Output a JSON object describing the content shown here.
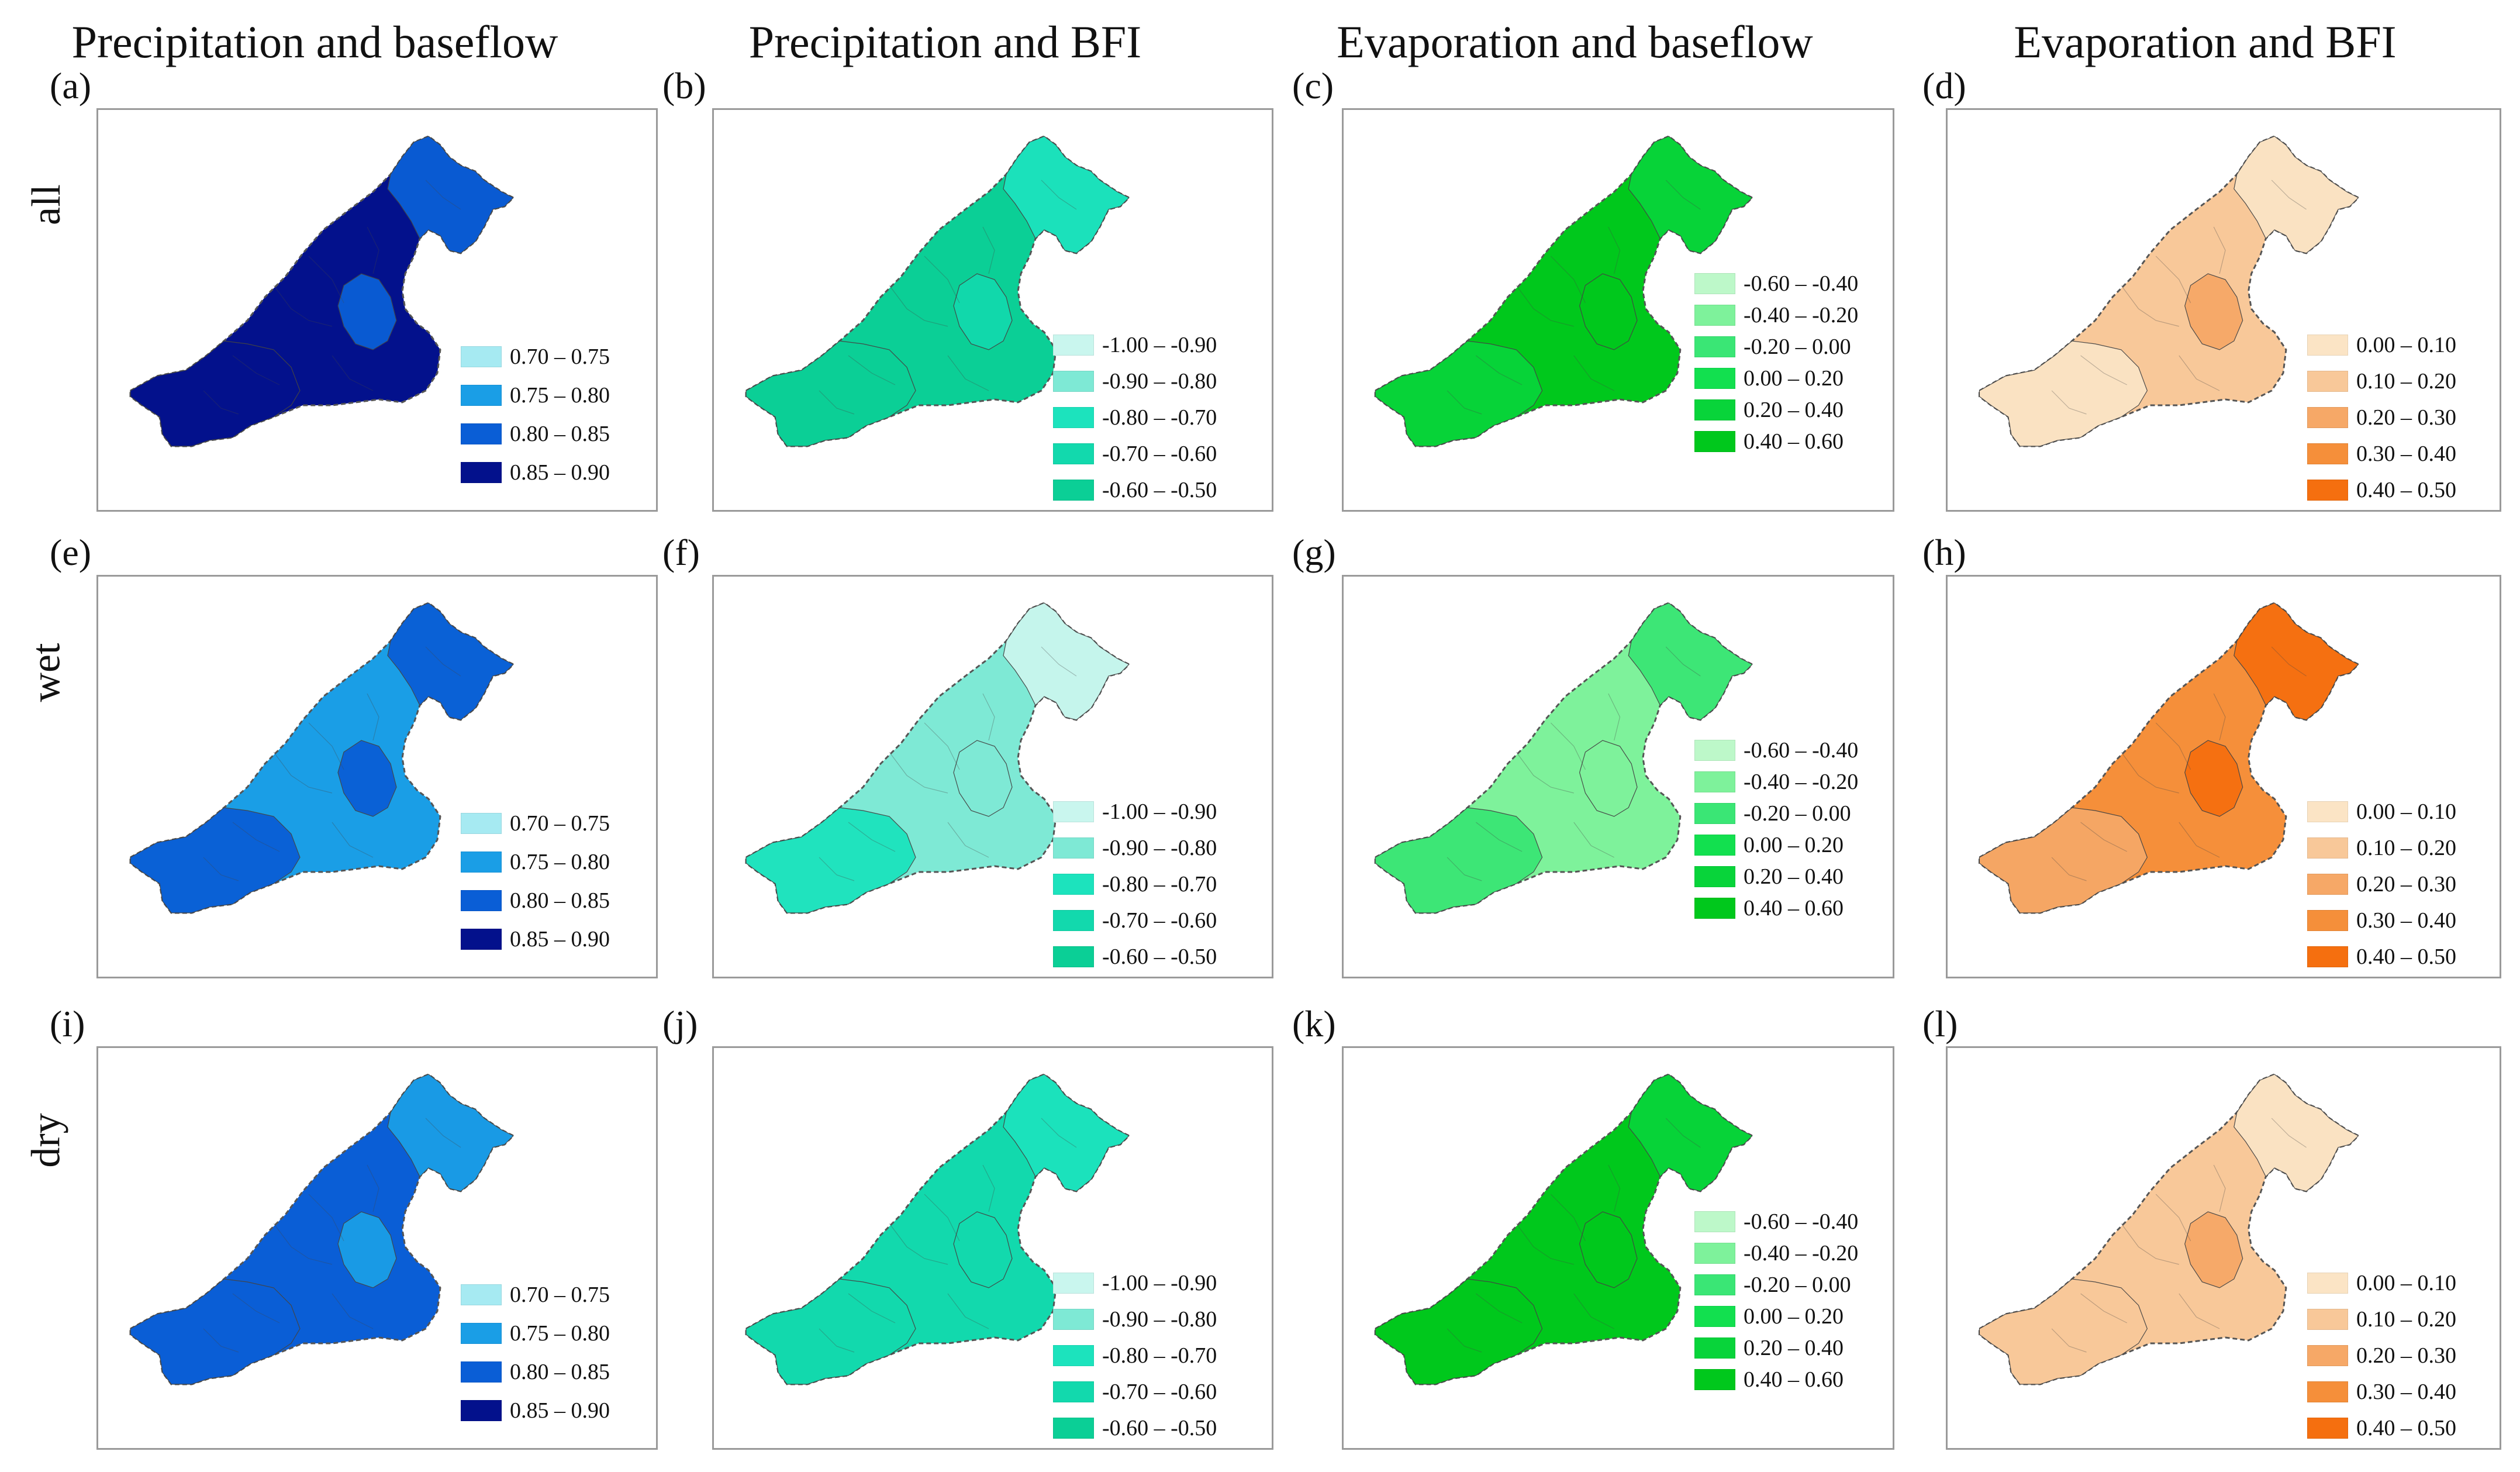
{
  "column_titles": [
    "Precipitation and baseflow",
    "Precipitation and BFI",
    "Evaporation and baseflow",
    "Evaporation and BFI"
  ],
  "row_labels": [
    "all",
    "wet",
    "dry"
  ],
  "panel_letters": [
    [
      "(a)",
      "(b)",
      "(c)",
      "(d)"
    ],
    [
      "(e)",
      "(f)",
      "(g)",
      "(h)"
    ],
    [
      "(i)",
      "(j)",
      "(k)",
      "(l)"
    ]
  ],
  "legends": [
    [
      {
        "label": "0.70 – 0.75",
        "color": "#a6eaf2"
      },
      {
        "label": "0.75 – 0.80",
        "color": "#1a9ee6"
      },
      {
        "label": "0.80 – 0.85",
        "color": "#0a5ed6"
      },
      {
        "label": "0.85 – 0.90",
        "color": "#03118c"
      }
    ],
    [
      {
        "label": "-1.00 – -0.90",
        "color": "#c9f6ee"
      },
      {
        "label": "-0.90 – -0.80",
        "color": "#7ee9d5"
      },
      {
        "label": "-0.80 – -0.70",
        "color": "#1ce3bd"
      },
      {
        "label": "-0.70 – -0.60",
        "color": "#12d9ad"
      },
      {
        "label": "-0.60 – -0.50",
        "color": "#0bcf96"
      }
    ],
    [
      {
        "label": "-0.60 – -0.40",
        "color": "#bdf8c9"
      },
      {
        "label": "-0.40 – -0.20",
        "color": "#7ef29b"
      },
      {
        "label": "-0.20 – 0.00",
        "color": "#3ae675"
      },
      {
        "label": "0.00 – 0.20",
        "color": "#12e04f"
      },
      {
        "label": "0.20 – 0.40",
        "color": "#08d43a"
      },
      {
        "label": "0.40 – 0.60",
        "color": "#00c81c"
      }
    ],
    [
      {
        "label": "0.00 – 0.10",
        "color": "#fbe4c5"
      },
      {
        "label": "0.10 – 0.20",
        "color": "#f8c899"
      },
      {
        "label": "0.20 – 0.30",
        "color": "#f6a867"
      },
      {
        "label": "0.30 – 0.40",
        "color": "#f58f3a"
      },
      {
        "label": "0.40 – 0.50",
        "color": "#f56f0f"
      }
    ]
  ],
  "panels": [
    [
      {
        "base": "#03118c",
        "ne": "#0a5ed6",
        "center": "#0a5ed6",
        "south": "#03118c"
      },
      {
        "base": "#0bcf96",
        "ne": "#1ce3bd",
        "center": "#12d9ad",
        "south": "#0bcf96"
      },
      {
        "base": "#00c81c",
        "ne": "#08d43a",
        "center": "#00c81c",
        "south": "#08d43a"
      },
      {
        "base": "#f8c899",
        "ne": "#fbe4c5",
        "center": "#f6a867",
        "south": "#fbe4c5"
      }
    ],
    [
      {
        "base": "#1a9ee6",
        "ne": "#0a5ed6",
        "center": "#0a5ed6",
        "south": "#0a5ed6"
      },
      {
        "base": "#7ee9d5",
        "ne": "#c9f6ee",
        "center": "#7ee9d5",
        "south": "#1ce3bd"
      },
      {
        "base": "#7ef29b",
        "ne": "#3ae675",
        "center": "#7ef29b",
        "south": "#3ae675"
      },
      {
        "base": "#f58f3a",
        "ne": "#f56f0f",
        "center": "#f56f0f",
        "south": "#f6a867"
      }
    ],
    [
      {
        "base": "#0a5ed6",
        "ne": "#1a9ee6",
        "center": "#1a9ee6",
        "south": "#0a5ed6"
      },
      {
        "base": "#12d9ad",
        "ne": "#1ce3bd",
        "center": "#12d9ad",
        "south": "#12d9ad"
      },
      {
        "base": "#00c81c",
        "ne": "#08d43a",
        "center": "#00c81c",
        "south": "#00c81c"
      },
      {
        "base": "#f8c899",
        "ne": "#fbe4c5",
        "center": "#f6a867",
        "south": "#f8c899"
      }
    ]
  ]
}
